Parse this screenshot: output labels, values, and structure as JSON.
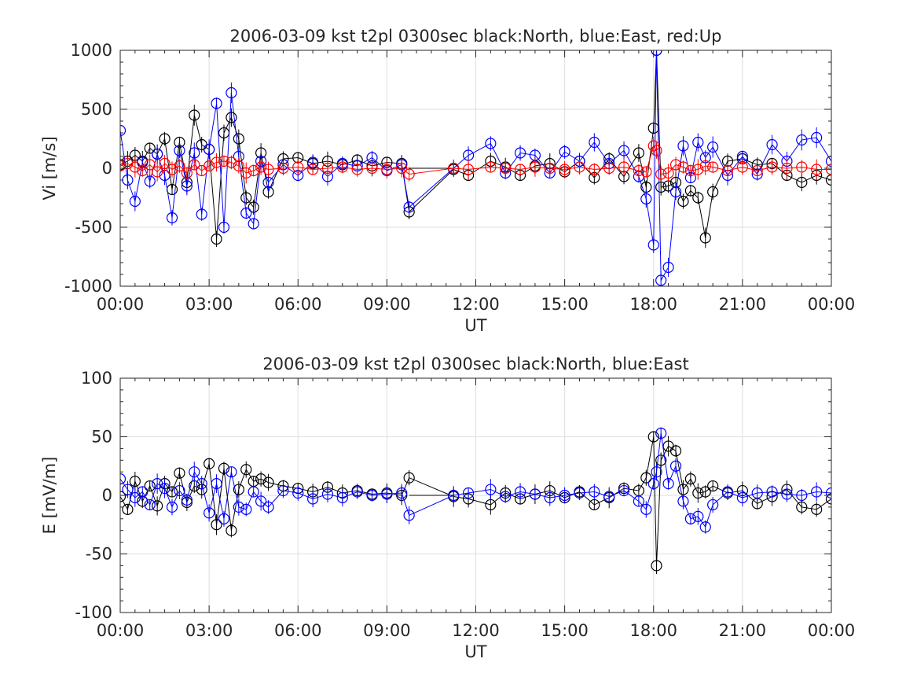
{
  "chart_data": [
    {
      "type": "scatter",
      "title": "2006-03-09 kst t2pl 0300sec black:North, blue:East, red:Up",
      "xlabel": "UT",
      "ylabel": "Vi [m/s]",
      "xlim": [
        0,
        24
      ],
      "ylim": [
        -1000,
        1000
      ],
      "xtick_labels": [
        "00:00",
        "03:00",
        "06:00",
        "09:00",
        "12:00",
        "15:00",
        "18:00",
        "21:00",
        "00:00"
      ],
      "ytick_labels": [
        "1000",
        "500",
        "0",
        "-500",
        "-1000"
      ],
      "grid": true,
      "marker": "open circle with error bars",
      "data_gap_hours": [
        9.75,
        11.25
      ],
      "series": [
        {
          "color": "#000000",
          "x": [
            0.0,
            0.25,
            0.5,
            0.75,
            1.0,
            1.25,
            1.5,
            1.75,
            2.0,
            2.25,
            2.5,
            2.75,
            3.0,
            3.25,
            3.5,
            3.75,
            4.0,
            4.25,
            4.5,
            4.75,
            5.0,
            5.5,
            6.0,
            6.5,
            7.0,
            7.5,
            8.0,
            8.5,
            9.0,
            9.5,
            9.75,
            11.25,
            11.75,
            12.5,
            13.0,
            13.5,
            14.0,
            14.5,
            15.0,
            15.5,
            16.0,
            16.5,
            17.0,
            17.5,
            17.75,
            18.0,
            18.1,
            18.25,
            18.5,
            18.75,
            19.0,
            19.25,
            19.5,
            19.75,
            20.0,
            20.5,
            21.0,
            21.5,
            22.0,
            22.5,
            23.0,
            23.5,
            24.0
          ],
          "y": [
            30,
            60,
            110,
            60,
            170,
            120,
            250,
            -180,
            220,
            -120,
            450,
            200,
            160,
            -600,
            300,
            430,
            250,
            -250,
            -330,
            130,
            -200,
            80,
            90,
            40,
            60,
            30,
            70,
            20,
            50,
            40,
            -370,
            -10,
            -60,
            60,
            10,
            -60,
            20,
            40,
            -30,
            60,
            -80,
            80,
            -70,
            130,
            -160,
            340,
            1000,
            -160,
            -150,
            -120,
            -280,
            -190,
            -250,
            -590,
            -200,
            60,
            80,
            30,
            40,
            -60,
            -120,
            -60,
            -100
          ]
        },
        {
          "color": "#0000ff",
          "x": [
            0.0,
            0.25,
            0.5,
            0.75,
            1.0,
            1.25,
            1.5,
            1.75,
            2.0,
            2.25,
            2.5,
            2.75,
            3.0,
            3.25,
            3.5,
            3.75,
            4.0,
            4.25,
            4.5,
            4.75,
            5.0,
            5.5,
            6.0,
            6.5,
            7.0,
            7.5,
            8.0,
            8.5,
            9.0,
            9.5,
            9.75,
            11.25,
            11.75,
            12.5,
            13.0,
            13.5,
            14.0,
            14.5,
            15.0,
            15.5,
            16.0,
            16.5,
            17.0,
            17.5,
            17.75,
            18.0,
            18.1,
            18.25,
            18.5,
            18.75,
            19.0,
            19.25,
            19.5,
            19.75,
            20.0,
            20.5,
            21.0,
            21.5,
            22.0,
            22.5,
            23.0,
            23.5,
            24.0
          ],
          "y": [
            320,
            -100,
            -280,
            50,
            -110,
            120,
            -60,
            -420,
            150,
            -150,
            130,
            -390,
            160,
            550,
            -500,
            640,
            100,
            -380,
            -470,
            60,
            -120,
            30,
            -60,
            50,
            -70,
            40,
            20,
            90,
            -20,
            30,
            -330,
            0,
            110,
            210,
            -40,
            130,
            110,
            -40,
            140,
            60,
            220,
            40,
            150,
            -70,
            -260,
            -650,
            1000,
            -950,
            -840,
            -200,
            190,
            -80,
            220,
            90,
            180,
            -60,
            100,
            -50,
            200,
            60,
            240,
            260,
            60
          ]
        },
        {
          "color": "#ff0000",
          "x": [
            0.0,
            0.25,
            0.5,
            0.75,
            1.0,
            1.25,
            1.5,
            1.75,
            2.0,
            2.25,
            2.5,
            2.75,
            3.0,
            3.25,
            3.5,
            3.75,
            4.0,
            4.25,
            4.5,
            4.75,
            5.0,
            5.5,
            6.0,
            6.5,
            7.0,
            7.5,
            8.0,
            8.5,
            9.0,
            9.5,
            9.75,
            11.25,
            11.75,
            12.5,
            13.0,
            13.5,
            14.0,
            14.5,
            15.0,
            15.5,
            16.0,
            16.5,
            17.0,
            17.5,
            17.75,
            18.0,
            18.1,
            18.25,
            18.5,
            18.75,
            19.0,
            19.25,
            19.5,
            19.75,
            20.0,
            20.5,
            21.0,
            21.5,
            22.0,
            22.5,
            23.0,
            23.5,
            24.0
          ],
          "y": [
            20,
            40,
            10,
            -20,
            30,
            -30,
            40,
            -10,
            20,
            -40,
            30,
            -20,
            20,
            50,
            60,
            50,
            20,
            -40,
            -20,
            10,
            -10,
            0,
            10,
            -10,
            0,
            10,
            -10,
            0,
            -10,
            0,
            -50,
            0,
            -10,
            10,
            0,
            -10,
            10,
            0,
            -10,
            10,
            -10,
            0,
            10,
            -20,
            -30,
            190,
            150,
            -50,
            -40,
            30,
            10,
            -20,
            -10,
            20,
            10,
            -20,
            10,
            -20,
            10,
            0,
            10,
            -10,
            -10
          ]
        }
      ]
    },
    {
      "type": "scatter",
      "title": "2006-03-09 kst t2pl 0300sec black:North, blue:East",
      "xlabel": "UT",
      "ylabel": "E [mV/m]",
      "xlim": [
        0,
        24
      ],
      "ylim": [
        -100,
        100
      ],
      "xtick_labels": [
        "00:00",
        "03:00",
        "06:00",
        "09:00",
        "12:00",
        "15:00",
        "18:00",
        "21:00",
        "00:00"
      ],
      "ytick_labels": [
        "100",
        "50",
        "0",
        "-50",
        "-100"
      ],
      "grid": true,
      "marker": "open circle with error bars",
      "data_gap_hours": [
        9.75,
        11.25
      ],
      "series": [
        {
          "color": "#000000",
          "x": [
            0.0,
            0.25,
            0.5,
            0.75,
            1.0,
            1.25,
            1.5,
            1.75,
            2.0,
            2.25,
            2.5,
            2.75,
            3.0,
            3.25,
            3.5,
            3.75,
            4.0,
            4.25,
            4.5,
            4.75,
            5.0,
            5.5,
            6.0,
            6.5,
            7.0,
            7.5,
            8.0,
            8.5,
            9.0,
            9.5,
            9.75,
            11.25,
            11.75,
            12.5,
            13.0,
            13.5,
            14.0,
            14.5,
            15.0,
            15.5,
            16.0,
            16.5,
            17.0,
            17.5,
            17.75,
            18.0,
            18.1,
            18.25,
            18.5,
            18.75,
            19.0,
            19.25,
            19.5,
            19.75,
            20.0,
            20.5,
            21.0,
            21.5,
            22.0,
            22.5,
            23.0,
            23.5,
            24.0
          ],
          "y": [
            -1,
            -12,
            12,
            -5,
            8,
            -9,
            10,
            3,
            19,
            -6,
            8,
            5,
            27,
            -25,
            23,
            -30,
            5,
            22,
            12,
            14,
            11,
            8,
            6,
            3,
            7,
            2,
            4,
            1,
            2,
            0,
            15,
            -1,
            -3,
            -8,
            2,
            -3,
            1,
            4,
            -2,
            3,
            -8,
            -2,
            6,
            4,
            15,
            50,
            -60,
            30,
            42,
            38,
            5,
            14,
            2,
            3,
            8,
            2,
            4,
            -7,
            -1,
            5,
            -10,
            -12,
            -3
          ]
        },
        {
          "color": "#0000ff",
          "x": [
            0.0,
            0.25,
            0.5,
            0.75,
            1.0,
            1.25,
            1.5,
            1.75,
            2.0,
            2.25,
            2.5,
            2.75,
            3.0,
            3.25,
            3.5,
            3.75,
            4.0,
            4.25,
            4.5,
            4.75,
            5.0,
            5.5,
            6.0,
            6.5,
            7.0,
            7.5,
            8.0,
            8.5,
            9.0,
            9.5,
            9.75,
            11.25,
            11.75,
            12.5,
            13.0,
            13.5,
            14.0,
            14.5,
            15.0,
            15.5,
            16.0,
            16.5,
            17.0,
            17.5,
            17.75,
            18.0,
            18.1,
            18.25,
            18.5,
            18.75,
            19.0,
            19.25,
            19.5,
            19.75,
            20.0,
            20.5,
            21.0,
            21.5,
            22.0,
            22.5,
            23.0,
            23.5,
            24.0
          ],
          "y": [
            14,
            5,
            -2,
            3,
            -8,
            10,
            6,
            -10,
            4,
            -4,
            20,
            10,
            -15,
            10,
            -20,
            20,
            -10,
            -12,
            3,
            -5,
            -10,
            4,
            2,
            -3,
            1,
            -2,
            3,
            0,
            1,
            2,
            -17,
            0,
            2,
            5,
            -1,
            3,
            1,
            -2,
            0,
            2,
            3,
            -1,
            4,
            -5,
            -12,
            10,
            20,
            53,
            10,
            25,
            -5,
            -20,
            -18,
            -27,
            -8,
            3,
            -2,
            2,
            3,
            1,
            0,
            3,
            2
          ]
        }
      ]
    }
  ]
}
